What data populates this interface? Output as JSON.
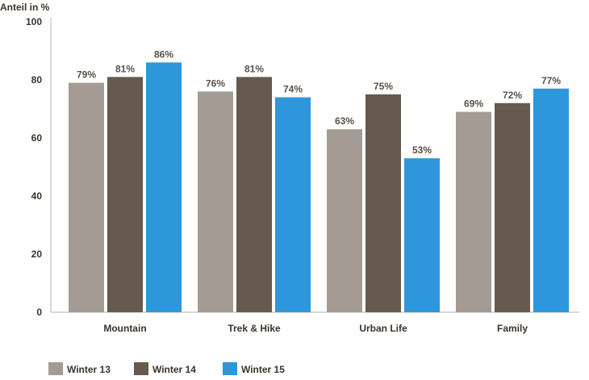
{
  "chart_data": {
    "type": "bar",
    "ylabel": "Anteil in %",
    "xlabel": "",
    "ylim": [
      0,
      100
    ],
    "yticks": [
      0,
      20,
      40,
      60,
      80,
      100
    ],
    "categories": [
      "Mountain",
      "Trek & Hike",
      "Urban Life",
      "Family"
    ],
    "series": [
      {
        "name": "Winter 13",
        "values": [
          79,
          76,
          63,
          69
        ],
        "labels": [
          "79%",
          "76%",
          "63%",
          "69%"
        ],
        "color": "#a59b95"
      },
      {
        "name": "Winter 14",
        "values": [
          81,
          81,
          75,
          72
        ],
        "labels": [
          "81%",
          "81%",
          "75%",
          "72%"
        ],
        "color": "#66594d"
      },
      {
        "name": "Winter 15",
        "values": [
          86,
          74,
          53,
          77
        ],
        "labels": [
          "86%",
          "74%",
          "53%",
          "77%"
        ],
        "color": "#2e96db"
      }
    ],
    "grid": false,
    "legend_position": "bottom-left"
  }
}
